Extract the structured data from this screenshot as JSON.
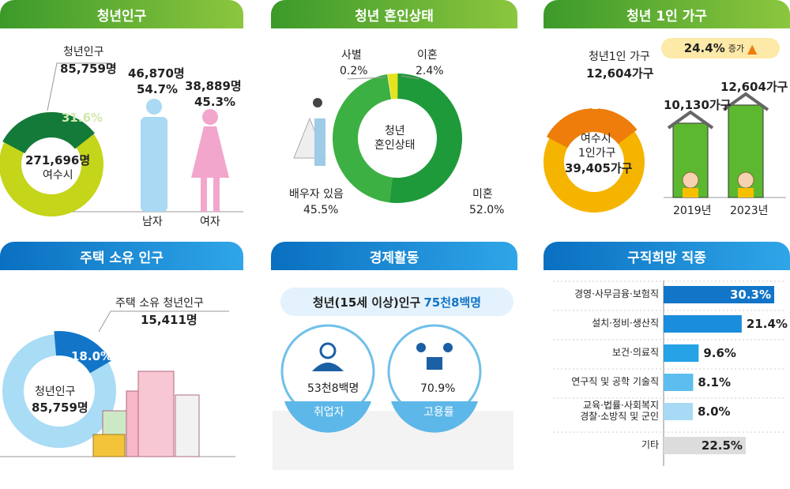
{
  "panels": {
    "youth_population": {
      "title": "청년인구",
      "label": "청년인구",
      "youth": "85,759명",
      "pct": "31.6%",
      "total": "271,696명",
      "city": "여수시",
      "male_count": "46,870명",
      "male_pct": "54.7%",
      "female_count": "38,889명",
      "female_pct": "45.3%",
      "male_label": "남자",
      "female_label": "여자"
    },
    "marital_status": {
      "title": "청년 혼인상태",
      "center": "청년\n혼인상태",
      "widowed_label": "사별",
      "widowed_pct": "0.2%",
      "divorced_label": "이혼",
      "divorced_pct": "2.4%",
      "married_label": "배우자 있음",
      "married_pct": "45.5%",
      "single_label": "미혼",
      "single_pct": "52.0%"
    },
    "single_household": {
      "title": "청년 1인 가구",
      "increase": "24.4%",
      "increase_word": "증가",
      "label": "청년1인 가구",
      "youth_count": "12,604가구",
      "pct": "32.0%",
      "center_1": "여수시",
      "center_2": "1인가구",
      "center_3": "39,405가구",
      "y2019_value": "10,130가구",
      "y2023_value": "12,604가구",
      "y2019": "2019년",
      "y2023": "2023년"
    },
    "home_ownership": {
      "title": "주택 소유 인구",
      "label": "주택 소유 청년인구",
      "owners": "15,411명",
      "pct": "18.0%",
      "center_1": "청년인구",
      "center_2": "85,759명"
    },
    "economic_activity": {
      "title": "경제활동",
      "pill_text": "청년(15세 이상)인구 ",
      "pill_value": "75천8백명",
      "employed_value": "53천8백명",
      "employed_label": "취업자",
      "rate_value": "70.9%",
      "rate_label": "고용률"
    },
    "desired_jobs": {
      "title": "구직희망 직종"
    }
  },
  "colors": {
    "green_dark": "#137a3a",
    "green_light": "#c5d51a",
    "marital_dark": "#1f9a3a",
    "marital_light": "#3cb043",
    "yellow": "#e5e31c",
    "orange": "#ee7d0b",
    "amber": "#f5b400",
    "blue_dark": "#1275c8",
    "blue_light": "#a9dcf5",
    "male": "#a9d9f3",
    "female": "#f3a6cc",
    "house": "#5cb82f"
  },
  "chart_data": [
    {
      "type": "pie",
      "title": "청년인구",
      "values": [
        31.6,
        68.4
      ],
      "labels": [
        "청년인구",
        "기타"
      ]
    },
    {
      "type": "bar",
      "title": "청년인구 성별",
      "categories": [
        "남자",
        "여자"
      ],
      "values": [
        46870,
        38889
      ]
    },
    {
      "type": "pie",
      "title": "청년 혼인상태",
      "labels": [
        "미혼",
        "배우자 있음",
        "사별",
        "이혼"
      ],
      "values": [
        52.0,
        45.5,
        0.2,
        2.4
      ]
    },
    {
      "type": "pie",
      "title": "청년 1인 가구",
      "values": [
        32.0,
        68.0
      ]
    },
    {
      "type": "bar",
      "title": "청년 1인 가구 추이",
      "categories": [
        "2019년",
        "2023년"
      ],
      "values": [
        10130,
        12604
      ]
    },
    {
      "type": "pie",
      "title": "주택 소유 인구",
      "values": [
        18.0,
        82.0
      ]
    },
    {
      "type": "bar",
      "title": "구직희망 직종",
      "categories": [
        "경영·사무금융·보험직",
        "설치·정비·생산직",
        "보건·의료직",
        "연구직 및 공학 기술직",
        "교육·법률·사회복지\n경찰·소방직 및 군인",
        "기타"
      ],
      "values": [
        30.3,
        21.4,
        9.6,
        8.1,
        8.0,
        22.5
      ],
      "labels": [
        "30.3%",
        "21.4%",
        "9.6%",
        "8.1%",
        "8.0%",
        "22.5%"
      ]
    }
  ]
}
